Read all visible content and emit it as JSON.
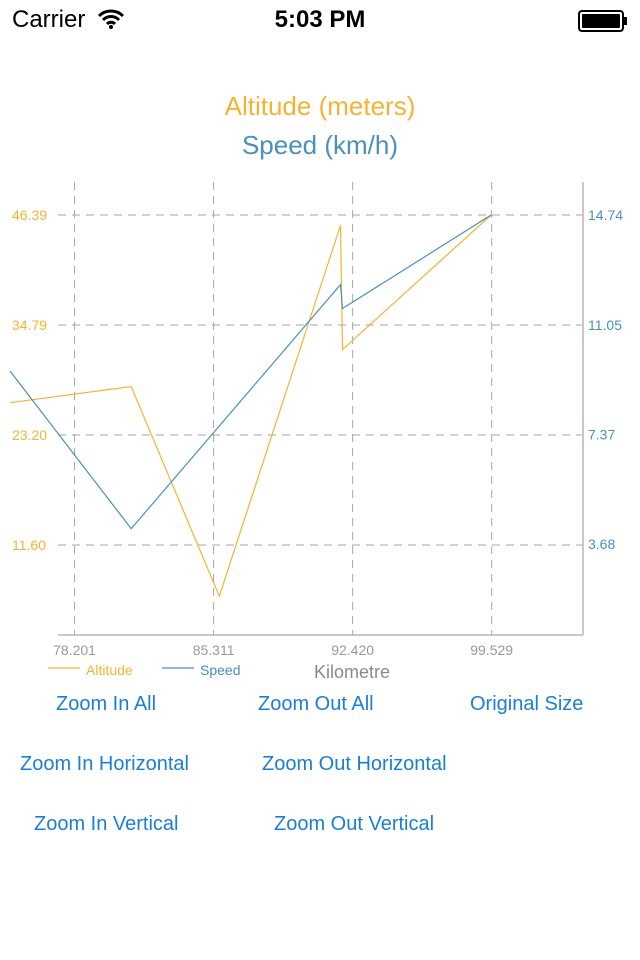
{
  "status_bar": {
    "carrier": "Carrier",
    "time": "5:03 PM"
  },
  "colors": {
    "altitude": "#f5b335",
    "speed": "#4a90bd",
    "grid": "#a6a6a6",
    "axis": "#b5b5b5",
    "xtick": "#999999",
    "button": "#1a7fd4"
  },
  "chart_data": {
    "type": "line",
    "title": "Altitude (meters)",
    "subtitle": "Speed (km/h)",
    "xlabel": "Kilometre",
    "x_ticks": [
      "78.201",
      "85.311",
      "92.420",
      "99.529"
    ],
    "x_tick_values": [
      78.201,
      85.311,
      92.42,
      99.529
    ],
    "xlim": [
      74.9,
      104.2
    ],
    "y_left_ticks": [
      "11.60",
      "23.20",
      "34.79",
      "46.39"
    ],
    "y_left_tick_values": [
      11.6,
      23.2,
      34.79,
      46.39
    ],
    "y_left_lim": [
      3.9,
      46.39
    ],
    "y_right_ticks": [
      "3.68",
      "7.37",
      "11.05",
      "14.74"
    ],
    "y_right_tick_values": [
      3.68,
      7.37,
      11.05,
      14.74
    ],
    "y_right_lim": [
      1.2,
      14.74
    ],
    "legend_position": "bottom-left",
    "grid": true,
    "series": [
      {
        "name": "Altitude",
        "axis": "left",
        "color": "#f5b335",
        "x": [
          74.9,
          81.1,
          85.6,
          91.8,
          91.9,
          99.5
        ],
        "y": [
          26.6,
          28.3,
          6.2,
          45.3,
          32.2,
          46.39
        ]
      },
      {
        "name": "Speed",
        "axis": "right",
        "color": "#4a90bd",
        "x": [
          74.9,
          81.1,
          91.8,
          91.9,
          99.5
        ],
        "y": [
          9.5,
          4.2,
          12.4,
          11.6,
          14.74
        ]
      }
    ]
  },
  "buttons": {
    "zoom_in_all": "Zoom In All",
    "zoom_out_all": "Zoom Out All",
    "original_size": "Original Size",
    "zoom_in_horizontal": "Zoom In Horizontal",
    "zoom_out_horizontal": "Zoom Out Horizontal",
    "zoom_in_vertical": "Zoom In Vertical",
    "zoom_out_vertical": "Zoom Out Vertical"
  }
}
